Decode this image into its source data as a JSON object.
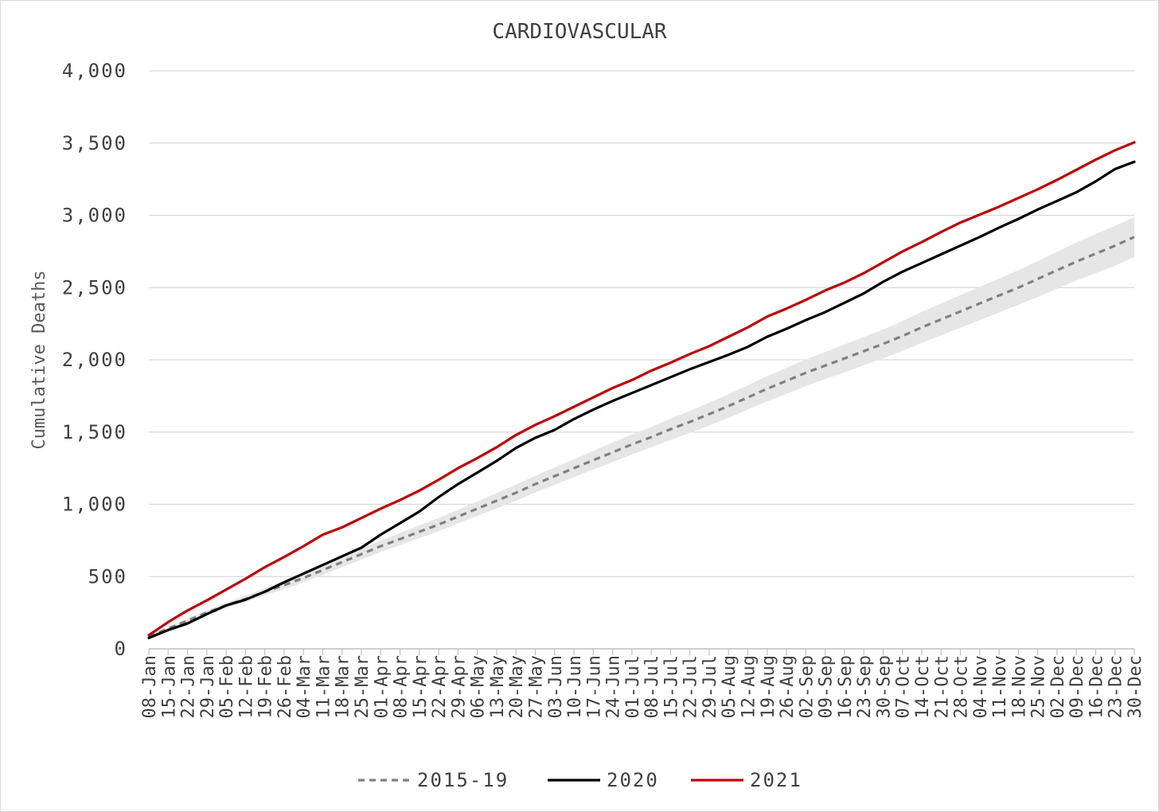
{
  "chart_data": {
    "type": "line",
    "title": "CARDIOVASCULAR",
    "xlabel": "",
    "ylabel": "Cumulative Deaths",
    "ylim": [
      0,
      4000
    ],
    "yticks": [
      0,
      500,
      1000,
      1500,
      2000,
      2500,
      3000,
      3500,
      4000
    ],
    "ytick_labels": [
      "0",
      "500",
      "1,000",
      "1,500",
      "2,000",
      "2,500",
      "3,000",
      "3,500",
      "4,000"
    ],
    "grid": "horizontal",
    "legend_position": "bottom",
    "categories": [
      "08-Jan",
      "15-Jan",
      "22-Jan",
      "29-Jan",
      "05-Feb",
      "12-Feb",
      "19-Feb",
      "26-Feb",
      "04-Mar",
      "11-Mar",
      "18-Mar",
      "25-Mar",
      "01-Apr",
      "08-Apr",
      "15-Apr",
      "22-Apr",
      "29-Apr",
      "06-May",
      "13-May",
      "20-May",
      "27-May",
      "03-Jun",
      "10-Jun",
      "17-Jun",
      "24-Jun",
      "01-Jul",
      "08-Jul",
      "15-Jul",
      "22-Jul",
      "29-Jul",
      "05-Aug",
      "12-Aug",
      "19-Aug",
      "26-Aug",
      "02-Sep",
      "09-Sep",
      "16-Sep",
      "23-Sep",
      "30-Sep",
      "07-Oct",
      "14-Oct",
      "21-Oct",
      "28-Oct",
      "04-Nov",
      "11-Nov",
      "18-Nov",
      "25-Nov",
      "02-Dec",
      "09-Dec",
      "16-Dec",
      "23-Dec",
      "30-Dec"
    ],
    "series": [
      {
        "name": "2015-19",
        "color": "#808080",
        "style": "dashed",
        "values": [
          85,
          140,
          195,
          250,
          300,
          345,
          395,
          440,
          490,
          545,
          600,
          655,
          710,
          760,
          810,
          860,
          915,
          970,
          1025,
          1080,
          1140,
          1195,
          1250,
          1305,
          1360,
          1415,
          1465,
          1520,
          1570,
          1625,
          1680,
          1740,
          1800,
          1855,
          1910,
          1960,
          2010,
          2060,
          2110,
          2165,
          2225,
          2280,
          2335,
          2390,
          2445,
          2500,
          2560,
          2620,
          2680,
          2735,
          2790,
          2850
        ]
      },
      {
        "name": "2020",
        "color": "#000000",
        "style": "solid",
        "values": [
          75,
          130,
          175,
          240,
          300,
          340,
          395,
          460,
          520,
          580,
          640,
          700,
          790,
          870,
          950,
          1050,
          1140,
          1220,
          1300,
          1390,
          1460,
          1515,
          1590,
          1655,
          1715,
          1770,
          1825,
          1880,
          1935,
          1985,
          2035,
          2090,
          2160,
          2215,
          2275,
          2330,
          2395,
          2460,
          2540,
          2610,
          2670,
          2730,
          2790,
          2850,
          2915,
          2975,
          3040,
          3100,
          3160,
          3235,
          3320,
          3370
        ]
      },
      {
        "name": "2021",
        "color": "#c00000",
        "style": "solid",
        "values": [
          95,
          185,
          265,
          335,
          410,
          485,
          565,
          635,
          710,
          790,
          840,
          905,
          970,
          1030,
          1095,
          1170,
          1250,
          1320,
          1395,
          1480,
          1550,
          1610,
          1675,
          1740,
          1805,
          1860,
          1925,
          1980,
          2040,
          2095,
          2160,
          2225,
          2300,
          2355,
          2415,
          2480,
          2535,
          2600,
          2675,
          2750,
          2815,
          2885,
          2950,
          3005,
          3060,
          3120,
          3180,
          3245,
          3315,
          3385,
          3450,
          3505
        ]
      }
    ],
    "band": {
      "series": "2015-19",
      "color": "#e6e6e6",
      "lower": [
        78,
        130,
        180,
        232,
        280,
        322,
        370,
        412,
        460,
        512,
        565,
        617,
        670,
        718,
        766,
        814,
        868,
        920,
        972,
        1025,
        1082,
        1135,
        1188,
        1240,
        1292,
        1345,
        1395,
        1446,
        1494,
        1546,
        1598,
        1656,
        1712,
        1765,
        1818,
        1866,
        1914,
        1962,
        2010,
        2062,
        2118,
        2170,
        2222,
        2275,
        2328,
        2380,
        2436,
        2492,
        2548,
        2600,
        2652,
        2712
      ],
      "upper": [
        92,
        150,
        210,
        268,
        320,
        368,
        420,
        468,
        520,
        578,
        635,
        693,
        750,
        802,
        854,
        906,
        962,
        1020,
        1078,
        1135,
        1198,
        1255,
        1312,
        1370,
        1428,
        1485,
        1535,
        1594,
        1646,
        1704,
        1762,
        1824,
        1888,
        1945,
        2002,
        2054,
        2106,
        2158,
        2210,
        2268,
        2332,
        2390,
        2448,
        2505,
        2562,
        2620,
        2684,
        2748,
        2812,
        2870,
        2928,
        2988
      ]
    }
  }
}
